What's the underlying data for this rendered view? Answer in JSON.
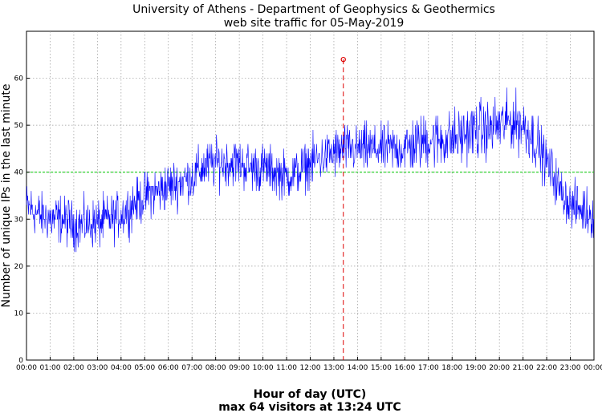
{
  "chart_data": {
    "type": "line",
    "title": "University of Athens - Department of Geophysics & Geothermics",
    "subtitle": "web site traffic for 05-May-2019",
    "xlabel": "Hour of day (UTC)",
    "ylabel": "Number of unique IPs in the last minute",
    "footer": "max 64 visitors at 13:24 UTC",
    "xlim": [
      0,
      1440
    ],
    "ylim": [
      0,
      70
    ],
    "x_ticks": [
      0,
      60,
      120,
      180,
      240,
      300,
      360,
      420,
      480,
      540,
      600,
      660,
      720,
      780,
      840,
      900,
      960,
      1020,
      1080,
      1140,
      1200,
      1260,
      1320,
      1380,
      1440
    ],
    "x_tick_labels": [
      "00:00",
      "01:00",
      "02:00",
      "03:00",
      "04:00",
      "05:00",
      "06:00",
      "07:00",
      "08:00",
      "09:00",
      "10:00",
      "11:00",
      "12:00",
      "13:00",
      "14:00",
      "15:00",
      "16:00",
      "17:00",
      "18:00",
      "19:00",
      "20:00",
      "21:00",
      "22:00",
      "23:00",
      "00:00"
    ],
    "y_ticks": [
      0,
      10,
      20,
      30,
      40,
      50,
      60
    ],
    "y_tick_labels": [
      "0",
      "10",
      "20",
      "30",
      "40",
      "50",
      "60"
    ],
    "grid": true,
    "series": [
      {
        "color": "#0000ff",
        "x": [
          0,
          30,
          60,
          90,
          120,
          150,
          180,
          210,
          240,
          270,
          300,
          330,
          360,
          390,
          420,
          450,
          480,
          510,
          540,
          570,
          600,
          630,
          660,
          690,
          720,
          750,
          780,
          810,
          840,
          870,
          900,
          930,
          960,
          990,
          1020,
          1050,
          1080,
          1110,
          1140,
          1170,
          1200,
          1230,
          1260,
          1290,
          1320,
          1350,
          1380,
          1410,
          1440
        ],
        "y": [
          33,
          31,
          30,
          30,
          29,
          29,
          29,
          30,
          31,
          33,
          35,
          36,
          37,
          38,
          39,
          41,
          42,
          42,
          42,
          41,
          41,
          40,
          39,
          40,
          42,
          43,
          44,
          45,
          45,
          45,
          45,
          45,
          45,
          46,
          47,
          47,
          47,
          48,
          49,
          49,
          50,
          51,
          50,
          47,
          42,
          37,
          33,
          32,
          31
        ]
      },
      {
        "color": "#00cc00",
        "style": "dashed",
        "y_value": 40
      }
    ],
    "max_marker": {
      "x": 804,
      "y": 64,
      "color": "#dd0000"
    }
  }
}
